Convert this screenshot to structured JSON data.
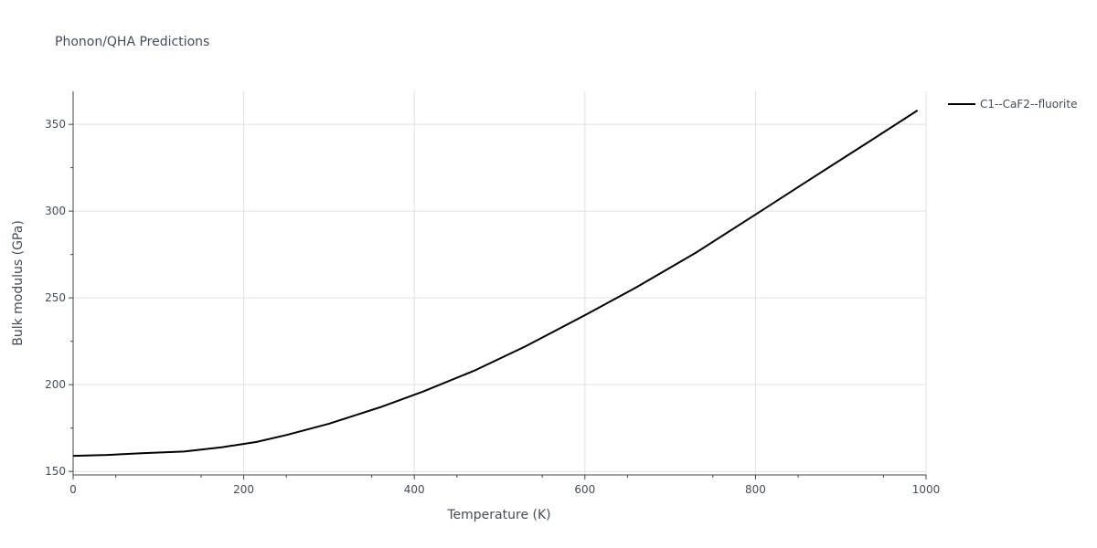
{
  "chart_data": {
    "type": "line",
    "title": "Phonon/QHA Predictions",
    "xlabel": "Temperature (K)",
    "ylabel": "Bulk modulus (GPa)",
    "xlim": [
      0,
      1000
    ],
    "ylim": [
      148,
      369
    ],
    "xticks": [
      0,
      200,
      400,
      600,
      800,
      1000
    ],
    "yticks": [
      150,
      200,
      250,
      300,
      350
    ],
    "grid": true,
    "legend_position": "top-right",
    "series": [
      {
        "name": "C1--CaF2--fluorite",
        "color": "#000000",
        "x": [
          0,
          40,
          80,
          130,
          175,
          215,
          250,
          300,
          360,
          410,
          470,
          530,
          600,
          660,
          730,
          800,
          860,
          930,
          990
        ],
        "y": [
          159,
          159.5,
          160.5,
          161.5,
          164,
          167,
          171,
          177.5,
          187,
          196,
          208,
          222,
          240,
          256,
          276,
          298,
          317,
          339,
          358
        ]
      }
    ]
  }
}
